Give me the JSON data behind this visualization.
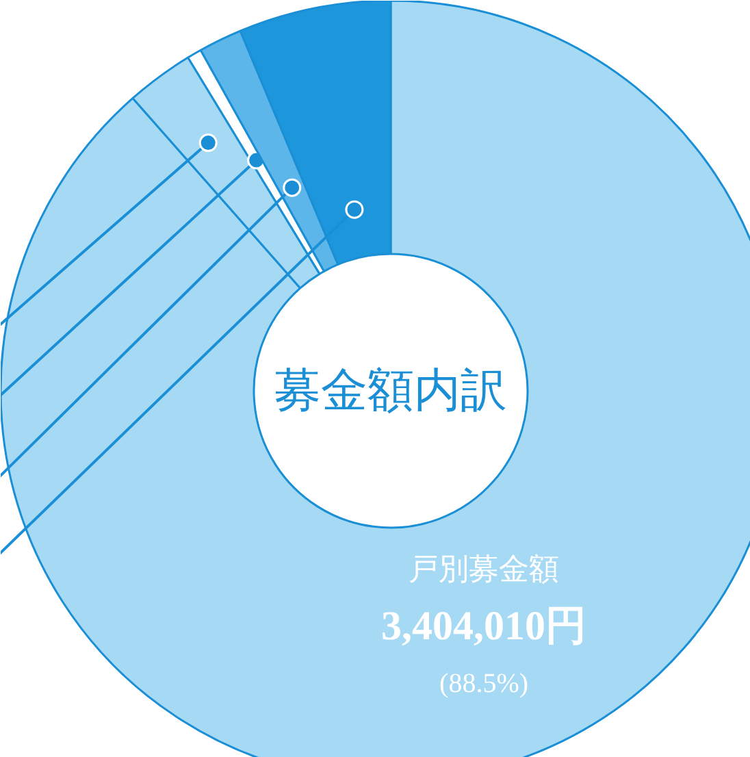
{
  "chart_data": {
    "type": "donut",
    "title": "募金額内訳",
    "categories": [
      "戸別募金額",
      null,
      null,
      null,
      null
    ],
    "values": [
      88.5,
      2.8,
      0.6,
      1.8,
      6.3
    ],
    "colors": [
      "#a6daf4",
      "#a6daf4",
      "#ffffff",
      "#5cb6ea",
      "#1e96dc"
    ],
    "value_labels": [
      "3,404,010円 (88.5%)",
      null,
      null,
      null,
      null
    ]
  }
}
